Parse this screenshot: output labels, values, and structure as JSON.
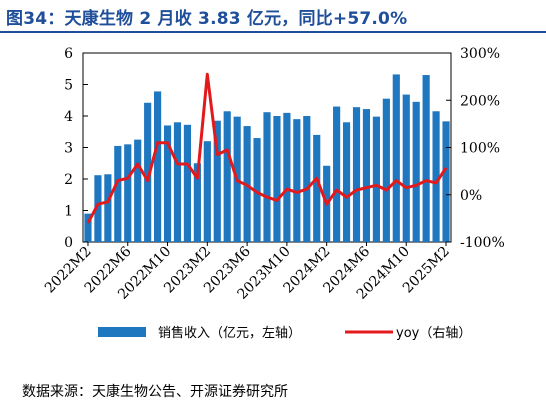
{
  "header": {
    "title": "图34：天康生物 2 月收 3.83 亿元，同比+57.0%"
  },
  "footer": {
    "source": "数据来源：天康生物公告、开源证券研究所"
  },
  "colors": {
    "bar": "#1F77C0",
    "line": "#E31A1C",
    "title": "#1F4E9A"
  },
  "chart_data": {
    "type": "bar",
    "title": "",
    "x": [
      "2022M2",
      "2022M3",
      "2022M4",
      "2022M5",
      "2022M6",
      "2022M7",
      "2022M8",
      "2022M9",
      "2022M10",
      "2022M11",
      "2022M12",
      "2023M1",
      "2023M2",
      "2023M3",
      "2023M4",
      "2023M5",
      "2023M6",
      "2023M7",
      "2023M8",
      "2023M9",
      "2023M10",
      "2023M11",
      "2023M12",
      "2024M1",
      "2024M2",
      "2024M3",
      "2024M4",
      "2024M5",
      "2024M6",
      "2024M7",
      "2024M8",
      "2024M9",
      "2024M10",
      "2024M11",
      "2024M12",
      "2025M1",
      "2025M2"
    ],
    "x_tick_labels": [
      "2022M2",
      "2022M6",
      "2022M10",
      "2023M2",
      "2023M6",
      "2023M10",
      "2024M2",
      "2024M6",
      "2024M10",
      "2025M2"
    ],
    "series": [
      {
        "name": "销售收入（亿元，左轴）",
        "type": "bar",
        "axis": "left",
        "values": [
          0.9,
          2.12,
          2.15,
          3.05,
          3.1,
          3.25,
          4.42,
          4.78,
          3.7,
          3.8,
          3.72,
          2.5,
          3.2,
          3.85,
          4.15,
          3.98,
          3.68,
          3.3,
          4.12,
          4.0,
          4.1,
          3.9,
          4.0,
          3.4,
          2.42,
          4.3,
          3.8,
          4.28,
          4.22,
          3.98,
          4.55,
          5.32,
          4.68,
          4.45,
          5.3,
          4.15,
          3.83
        ]
      },
      {
        "name": "yoy（右轴）",
        "type": "line",
        "axis": "right",
        "values": [
          -60,
          -20,
          -15,
          30,
          35,
          65,
          30,
          110,
          110,
          65,
          65,
          35,
          255,
          85,
          95,
          30,
          20,
          5,
          -5,
          -12,
          12,
          5,
          12,
          35,
          -20,
          10,
          -5,
          10,
          15,
          20,
          10,
          30,
          15,
          20,
          30,
          25,
          57
        ]
      }
    ],
    "y_left": {
      "min": 0,
      "max": 6,
      "ticks": [
        0,
        1,
        2,
        3,
        4,
        5,
        6
      ]
    },
    "y_right": {
      "min": -100,
      "max": 300,
      "ticks": [
        -100,
        0,
        100,
        200,
        300
      ],
      "tick_labels": [
        "-100%",
        "0%",
        "100%",
        "200%",
        "300%"
      ]
    },
    "legend_position": "bottom"
  }
}
